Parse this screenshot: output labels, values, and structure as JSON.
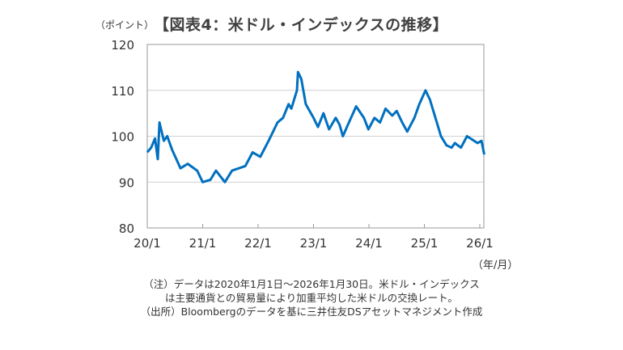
{
  "chart_data": {
    "type": "line",
    "title": "【図表4：米ドル・インデックスの推移】",
    "ylabel": "（ポイント）",
    "xlabel": "（年/月）",
    "ylim": [
      80,
      120
    ],
    "xlim": [
      2020.0,
      2026.08
    ],
    "yticks": [
      80,
      90,
      100,
      110,
      120
    ],
    "xticks": [
      {
        "value": 2020,
        "label": "20/1"
      },
      {
        "value": 2021,
        "label": "21/1"
      },
      {
        "value": 2022,
        "label": "22/1"
      },
      {
        "value": 2023,
        "label": "23/1"
      },
      {
        "value": 2024,
        "label": "24/1"
      },
      {
        "value": 2025,
        "label": "25/1"
      },
      {
        "value": 2026,
        "label": "26/1"
      }
    ],
    "grid": true,
    "series": [
      {
        "name": "米ドル・インデックス",
        "color": "#0070C0",
        "x": [
          2020.0,
          2020.07,
          2020.14,
          2020.19,
          2020.22,
          2020.3,
          2020.36,
          2020.45,
          2020.6,
          2020.73,
          2020.9,
          2021.0,
          2021.14,
          2021.24,
          2021.4,
          2021.53,
          2021.77,
          2021.9,
          2022.04,
          2022.19,
          2022.35,
          2022.45,
          2022.55,
          2022.6,
          2022.7,
          2022.72,
          2022.78,
          2022.86,
          2023.0,
          2023.08,
          2023.18,
          2023.28,
          2023.4,
          2023.47,
          2023.53,
          2023.62,
          2023.77,
          2023.91,
          2023.99,
          2024.1,
          2024.2,
          2024.3,
          2024.42,
          2024.5,
          2024.6,
          2024.69,
          2024.82,
          2024.91,
          2025.02,
          2025.1,
          2025.2,
          2025.3,
          2025.4,
          2025.49,
          2025.55,
          2025.66,
          2025.77,
          2025.96,
          2026.03,
          2026.08
        ],
        "y": [
          96.5,
          97.5,
          99.5,
          95,
          103,
          99,
          100,
          97,
          93,
          94,
          92.5,
          90,
          90.5,
          92.5,
          90,
          92.5,
          93.5,
          96.5,
          95.5,
          99,
          103,
          104,
          107,
          106,
          110,
          114,
          112.5,
          107,
          104,
          102,
          105,
          101.5,
          104,
          102.5,
          100,
          102.5,
          106.5,
          104,
          101.5,
          104,
          103,
          106,
          104.5,
          105.5,
          103,
          101,
          104,
          107,
          110,
          108,
          104,
          100,
          98,
          97.5,
          98.5,
          97.5,
          100,
          98.5,
          99,
          96
        ]
      }
    ]
  },
  "notes": [
    "（注）データは2020年1月1日～2026年1月30日。米ドル・インデックス",
    "は主要通貨との貿易量により加重平均した米ドルの交換レート。",
    "（出所）Bloombergのデータを基に三井住友DSアセットマネジメント作成"
  ]
}
